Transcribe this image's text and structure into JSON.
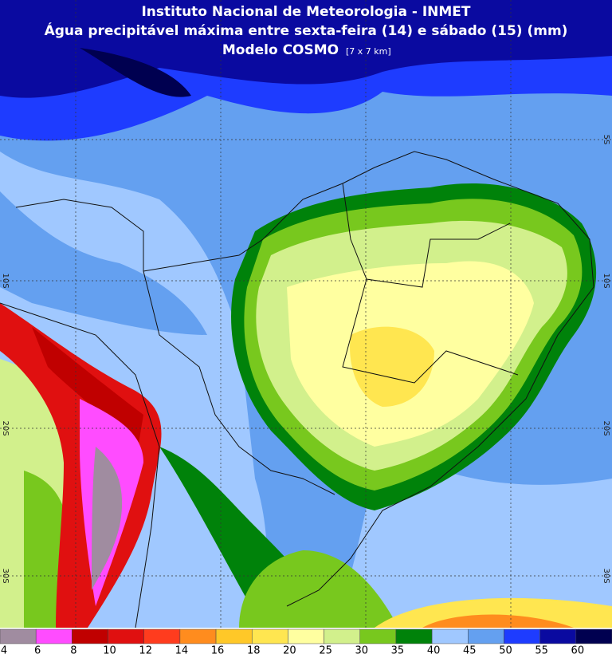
{
  "header": {
    "line1": "Instituto Nacional de Meteorologia - INMET",
    "line2": "Água precipitável máxima entre sexta-feira (14) e sábado (15) (mm)",
    "line3": "Modelo COSMO",
    "resolution": "[7 x 7 km]"
  },
  "latitudes": [
    "5S",
    "10S",
    "20S",
    "30S"
  ],
  "colorbar": {
    "levels": [
      4,
      6,
      8,
      10,
      12,
      14,
      16,
      18,
      20,
      25,
      30,
      35,
      40,
      45,
      50,
      55,
      60
    ],
    "colors": [
      "#a08ca0",
      "#ff4cff",
      "#c00000",
      "#e01010",
      "#ff3c1e",
      "#ff8c1e",
      "#ffc828",
      "#ffe650",
      "#ffffa0",
      "#d2f08c",
      "#78c81e",
      "#00820a",
      "#a0c8ff",
      "#64a0f0",
      "#1e3cff",
      "#0a0aa0",
      "#000050"
    ]
  }
}
